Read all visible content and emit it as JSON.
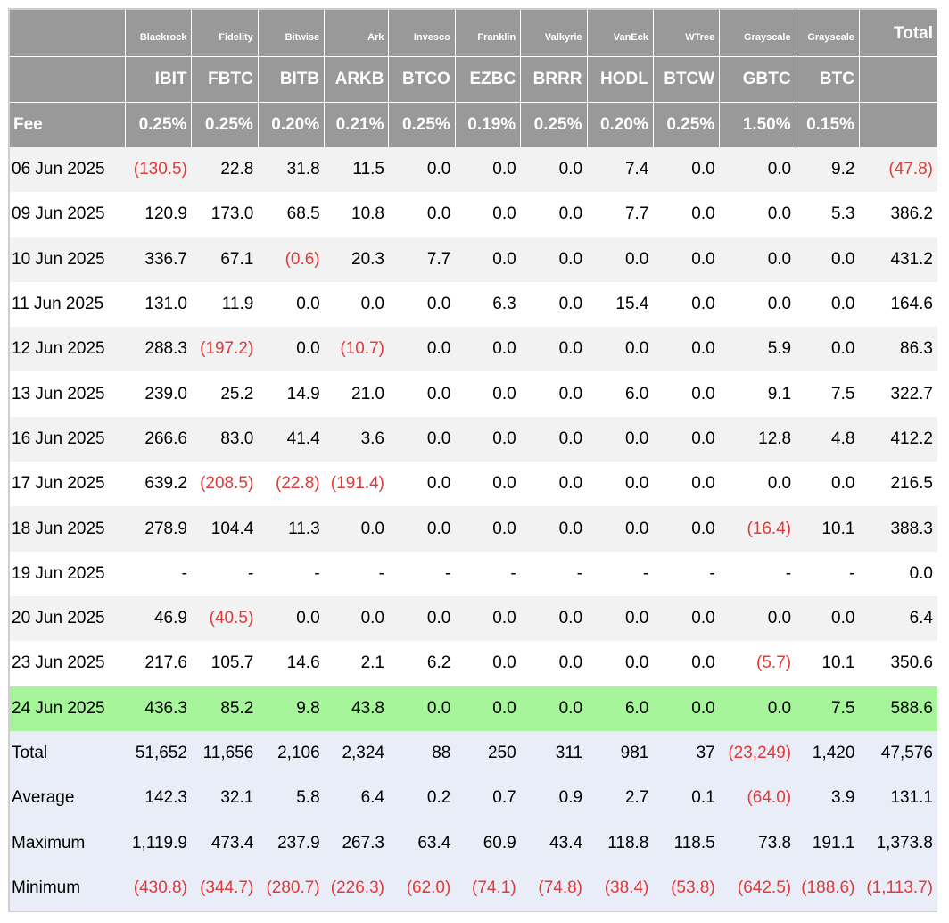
{
  "issuers": [
    "Blackrock",
    "Fidelity",
    "Bitwise",
    "Ark",
    "Invesco",
    "Franklin",
    "Valkyrie",
    "VanEck",
    "WTree",
    "Grayscale",
    "Grayscale"
  ],
  "total_label": "Total",
  "tickers": [
    "IBIT",
    "FBTC",
    "BITB",
    "ARKB",
    "BTCO",
    "EZBC",
    "BRRR",
    "HODL",
    "BTCW",
    "GBTC",
    "BTC"
  ],
  "fee_label": "Fee",
  "fees": [
    "0.25%",
    "0.25%",
    "0.20%",
    "0.21%",
    "0.25%",
    "0.19%",
    "0.25%",
    "0.20%",
    "0.25%",
    "1.50%",
    "0.15%"
  ],
  "rows": [
    {
      "label": "06 Jun 2025",
      "values": [
        "(130.5)",
        "22.8",
        "31.8",
        "11.5",
        "0.0",
        "0.0",
        "0.0",
        "7.4",
        "0.0",
        "0.0",
        "9.2",
        "(47.8)"
      ]
    },
    {
      "label": "09 Jun 2025",
      "values": [
        "120.9",
        "173.0",
        "68.5",
        "10.8",
        "0.0",
        "0.0",
        "0.0",
        "7.7",
        "0.0",
        "0.0",
        "5.3",
        "386.2"
      ]
    },
    {
      "label": "10 Jun 2025",
      "values": [
        "336.7",
        "67.1",
        "(0.6)",
        "20.3",
        "7.7",
        "0.0",
        "0.0",
        "0.0",
        "0.0",
        "0.0",
        "0.0",
        "431.2"
      ]
    },
    {
      "label": "11 Jun 2025",
      "values": [
        "131.0",
        "11.9",
        "0.0",
        "0.0",
        "0.0",
        "6.3",
        "0.0",
        "15.4",
        "0.0",
        "0.0",
        "0.0",
        "164.6"
      ]
    },
    {
      "label": "12 Jun 2025",
      "values": [
        "288.3",
        "(197.2)",
        "0.0",
        "(10.7)",
        "0.0",
        "0.0",
        "0.0",
        "0.0",
        "0.0",
        "5.9",
        "0.0",
        "86.3"
      ]
    },
    {
      "label": "13 Jun 2025",
      "values": [
        "239.0",
        "25.2",
        "14.9",
        "21.0",
        "0.0",
        "0.0",
        "0.0",
        "6.0",
        "0.0",
        "9.1",
        "7.5",
        "322.7"
      ]
    },
    {
      "label": "16 Jun 2025",
      "values": [
        "266.6",
        "83.0",
        "41.4",
        "3.6",
        "0.0",
        "0.0",
        "0.0",
        "0.0",
        "0.0",
        "12.8",
        "4.8",
        "412.2"
      ]
    },
    {
      "label": "17 Jun 2025",
      "values": [
        "639.2",
        "(208.5)",
        "(22.8)",
        "(191.4)",
        "0.0",
        "0.0",
        "0.0",
        "0.0",
        "0.0",
        "0.0",
        "0.0",
        "216.5"
      ]
    },
    {
      "label": "18 Jun 2025",
      "values": [
        "278.9",
        "104.4",
        "11.3",
        "0.0",
        "0.0",
        "0.0",
        "0.0",
        "0.0",
        "0.0",
        "(16.4)",
        "10.1",
        "388.3"
      ]
    },
    {
      "label": "19 Jun 2025",
      "values": [
        "-",
        "-",
        "-",
        "-",
        "-",
        "-",
        "-",
        "-",
        "-",
        "-",
        "-",
        "0.0"
      ]
    },
    {
      "label": "20 Jun 2025",
      "values": [
        "46.9",
        "(40.5)",
        "0.0",
        "0.0",
        "0.0",
        "0.0",
        "0.0",
        "0.0",
        "0.0",
        "0.0",
        "0.0",
        "6.4"
      ]
    },
    {
      "label": "23 Jun 2025",
      "values": [
        "217.6",
        "105.7",
        "14.6",
        "2.1",
        "6.2",
        "0.0",
        "0.0",
        "0.0",
        "0.0",
        "(5.7)",
        "10.1",
        "350.6"
      ]
    },
    {
      "label": "24 Jun 2025",
      "values": [
        "436.3",
        "85.2",
        "9.8",
        "43.8",
        "0.0",
        "0.0",
        "0.0",
        "6.0",
        "0.0",
        "0.0",
        "7.5",
        "588.6"
      ]
    }
  ],
  "summary": [
    {
      "label": "Total",
      "values": [
        "51,652",
        "11,656",
        "2,106",
        "2,324",
        "88",
        "250",
        "311",
        "981",
        "37",
        "(23,249)",
        "1,420",
        "47,576"
      ]
    },
    {
      "label": "Average",
      "values": [
        "142.3",
        "32.1",
        "5.8",
        "6.4",
        "0.2",
        "0.7",
        "0.9",
        "2.7",
        "0.1",
        "(64.0)",
        "3.9",
        "131.1"
      ]
    },
    {
      "label": "Maximum",
      "values": [
        "1,119.9",
        "473.4",
        "237.9",
        "267.3",
        "63.4",
        "60.9",
        "43.4",
        "118.8",
        "118.5",
        "73.8",
        "191.1",
        "1,373.8"
      ]
    },
    {
      "label": "Minimum",
      "values": [
        "(430.8)",
        "(344.7)",
        "(280.7)",
        "(226.3)",
        "(62.0)",
        "(74.1)",
        "(74.8)",
        "(38.4)",
        "(53.8)",
        "(642.5)",
        "(188.6)",
        "(1,113.7)"
      ]
    }
  ],
  "colors": {
    "header_bg": "#999999",
    "row_shade": "#f2f2f2",
    "highlight_row": "#a6f59a",
    "summary_bg": "#e9edf7",
    "negative": "#e03a3a"
  }
}
